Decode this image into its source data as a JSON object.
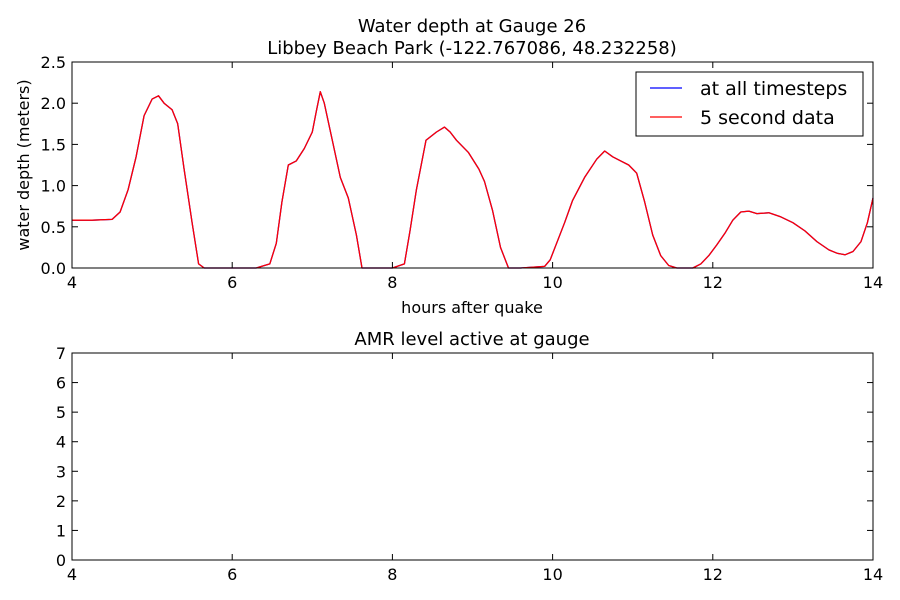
{
  "chart_data": [
    {
      "type": "line",
      "title": "Water depth at Gauge 26",
      "subtitle": "Libbey Beach Park  (-122.767086, 48.232258)",
      "xlabel": "hours after quake",
      "ylabel": "water depth (meters)",
      "xlim": [
        4,
        14
      ],
      "ylim": [
        0,
        2.5
      ],
      "x_ticks": [
        "4",
        "6",
        "8",
        "10",
        "12",
        "14"
      ],
      "y_ticks": [
        "0.0",
        "0.5",
        "1.0",
        "1.5",
        "2.0",
        "2.5"
      ],
      "grid": false,
      "legend_position": "top-right",
      "series": [
        {
          "name": "at all timesteps",
          "color": "#0000ff",
          "x": [
            4.0,
            4.25,
            4.5,
            4.6,
            4.7,
            4.8,
            4.9,
            5.0,
            5.08,
            5.15,
            5.25,
            5.32,
            5.4,
            5.5,
            5.58,
            5.65,
            6.0,
            6.3,
            6.47,
            6.55,
            6.62,
            6.7,
            6.8,
            6.9,
            7.0,
            7.05,
            7.1,
            7.15,
            7.25,
            7.35,
            7.45,
            7.55,
            7.62,
            7.7,
            8.0,
            8.15,
            8.22,
            8.3,
            8.42,
            8.55,
            8.65,
            8.72,
            8.8,
            8.95,
            9.08,
            9.15,
            9.25,
            9.35,
            9.45,
            9.6,
            9.9,
            9.97,
            10.05,
            10.15,
            10.25,
            10.4,
            10.55,
            10.65,
            10.75,
            10.85,
            10.95,
            11.05,
            11.15,
            11.25,
            11.35,
            11.45,
            11.55,
            11.75,
            11.85,
            11.95,
            12.05,
            12.15,
            12.25,
            12.35,
            12.45,
            12.55,
            12.7,
            12.85,
            13.0,
            13.15,
            13.3,
            13.45,
            13.55,
            13.65,
            13.75,
            13.85,
            13.93,
            14.0
          ],
          "y": [
            0.58,
            0.58,
            0.59,
            0.68,
            0.95,
            1.35,
            1.85,
            2.05,
            2.09,
            2.0,
            1.92,
            1.75,
            1.2,
            0.55,
            0.05,
            0.0,
            0.0,
            0.0,
            0.05,
            0.3,
            0.8,
            1.25,
            1.3,
            1.45,
            1.65,
            1.9,
            2.14,
            2.0,
            1.55,
            1.1,
            0.85,
            0.4,
            0.0,
            0.0,
            0.0,
            0.05,
            0.45,
            0.95,
            1.55,
            1.65,
            1.71,
            1.65,
            1.55,
            1.4,
            1.2,
            1.05,
            0.7,
            0.25,
            0.0,
            0.0,
            0.02,
            0.1,
            0.3,
            0.55,
            0.82,
            1.1,
            1.32,
            1.42,
            1.35,
            1.3,
            1.25,
            1.15,
            0.8,
            0.4,
            0.15,
            0.03,
            0.0,
            0.0,
            0.05,
            0.15,
            0.28,
            0.42,
            0.58,
            0.68,
            0.69,
            0.66,
            0.67,
            0.62,
            0.55,
            0.45,
            0.32,
            0.22,
            0.18,
            0.16,
            0.2,
            0.32,
            0.55,
            0.85
          ]
        },
        {
          "name": "5 second data",
          "color": "#ff0000",
          "x": [
            4.0,
            4.25,
            4.5,
            4.6,
            4.7,
            4.8,
            4.9,
            5.0,
            5.08,
            5.15,
            5.25,
            5.32,
            5.4,
            5.5,
            5.58,
            5.65,
            6.0,
            6.3,
            6.47,
            6.55,
            6.62,
            6.7,
            6.8,
            6.9,
            7.0,
            7.05,
            7.1,
            7.15,
            7.25,
            7.35,
            7.45,
            7.55,
            7.62,
            7.7,
            8.0,
            8.15,
            8.22,
            8.3,
            8.42,
            8.55,
            8.65,
            8.72,
            8.8,
            8.95,
            9.08,
            9.15,
            9.25,
            9.35,
            9.45,
            9.6,
            9.9,
            9.97,
            10.05,
            10.15,
            10.25,
            10.4,
            10.55,
            10.65,
            10.75,
            10.85,
            10.95,
            11.05,
            11.15,
            11.25,
            11.35,
            11.45,
            11.55,
            11.75,
            11.85,
            11.95,
            12.05,
            12.15,
            12.25,
            12.35,
            12.45,
            12.55,
            12.7,
            12.85,
            13.0,
            13.15,
            13.3,
            13.45,
            13.55,
            13.65,
            13.75,
            13.85,
            13.93,
            14.0
          ],
          "y": [
            0.58,
            0.58,
            0.59,
            0.68,
            0.95,
            1.35,
            1.85,
            2.05,
            2.09,
            2.0,
            1.92,
            1.75,
            1.2,
            0.55,
            0.05,
            0.0,
            0.0,
            0.0,
            0.05,
            0.3,
            0.8,
            1.25,
            1.3,
            1.45,
            1.65,
            1.9,
            2.14,
            2.0,
            1.55,
            1.1,
            0.85,
            0.4,
            0.0,
            0.0,
            0.0,
            0.05,
            0.45,
            0.95,
            1.55,
            1.65,
            1.71,
            1.65,
            1.55,
            1.4,
            1.2,
            1.05,
            0.7,
            0.25,
            0.0,
            0.0,
            0.02,
            0.1,
            0.3,
            0.55,
            0.82,
            1.1,
            1.32,
            1.42,
            1.35,
            1.3,
            1.25,
            1.15,
            0.8,
            0.4,
            0.15,
            0.03,
            0.0,
            0.0,
            0.05,
            0.15,
            0.28,
            0.42,
            0.58,
            0.68,
            0.69,
            0.66,
            0.67,
            0.62,
            0.55,
            0.45,
            0.32,
            0.22,
            0.18,
            0.16,
            0.2,
            0.32,
            0.55,
            0.85
          ]
        }
      ]
    },
    {
      "type": "line",
      "title": "AMR level active at gauge",
      "xlim": [
        4,
        14
      ],
      "ylim": [
        0,
        7
      ],
      "x_ticks": [
        "4",
        "6",
        "8",
        "10",
        "12",
        "14"
      ],
      "y_ticks": [
        "0",
        "1",
        "2",
        "3",
        "4",
        "5",
        "6",
        "7"
      ],
      "grid": false,
      "series": []
    }
  ]
}
